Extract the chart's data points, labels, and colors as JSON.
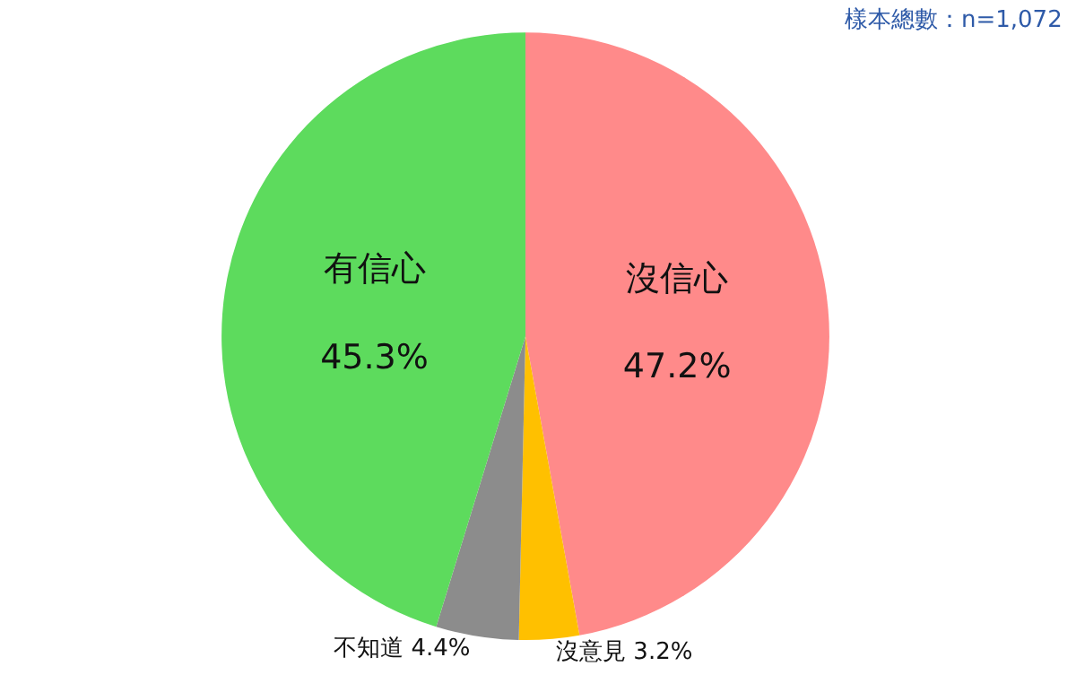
{
  "chart_data": {
    "type": "pie",
    "categories": [
      "沒信心",
      "沒意見",
      "不知道",
      "有信心"
    ],
    "values": [
      47.2,
      3.2,
      4.4,
      45.3
    ],
    "value_labels": [
      "47.2%",
      "3.2%",
      "4.4%",
      "45.3%"
    ],
    "colors": [
      "#ff8a8a",
      "#ffc000",
      "#8c8c8c",
      "#5ddb5d"
    ],
    "annotations": [
      "樣本總數：n=1,072"
    ],
    "legend": false
  }
}
